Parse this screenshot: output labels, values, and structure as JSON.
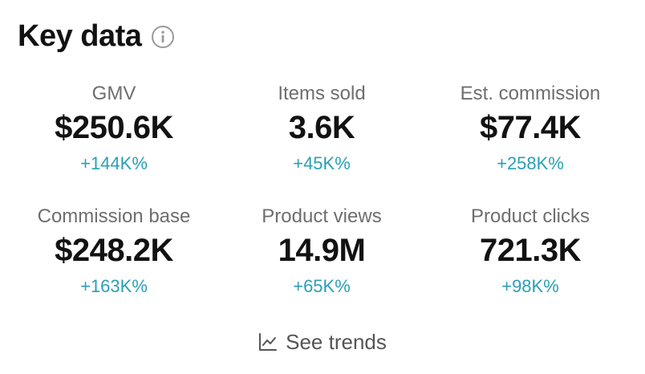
{
  "header": {
    "title": "Key data",
    "info_icon": "info-icon"
  },
  "metrics": [
    {
      "label": "GMV",
      "value": "$250.6K",
      "change": "+144K%"
    },
    {
      "label": "Items sold",
      "value": "3.6K",
      "change": "+45K%"
    },
    {
      "label": "Est. commission",
      "value": "$77.4K",
      "change": "+258K%"
    },
    {
      "label": "Commission base",
      "value": "$248.2K",
      "change": "+163K%"
    },
    {
      "label": "Product views",
      "value": "14.9M",
      "change": "+65K%"
    },
    {
      "label": "Product clicks",
      "value": "721.3K",
      "change": "+98K%"
    }
  ],
  "footer": {
    "trends_label": "See trends",
    "trends_icon": "line-chart-icon"
  },
  "colors": {
    "change_positive": "#2a9fb4",
    "label": "#6e6e6e",
    "value": "#121212"
  }
}
